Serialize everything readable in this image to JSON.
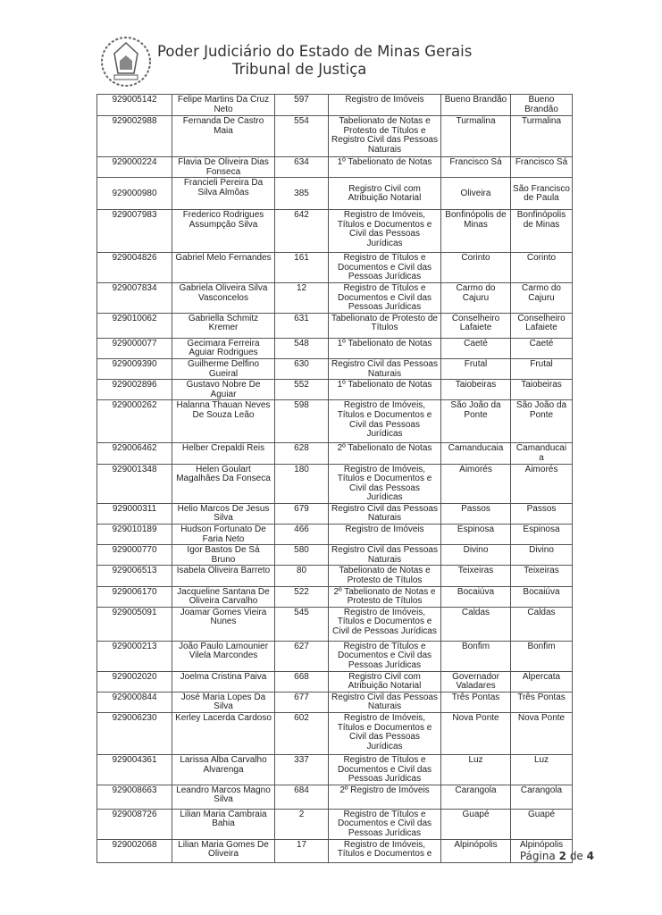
{
  "header": {
    "title": "Poder Judiciário do Estado de Minas Gerais",
    "subtitle": "Tribunal de Justiça",
    "seal_icon": "coat-of-arms-seal"
  },
  "table": {
    "rows": [
      [
        "929005142",
        "Felipe Martins Da Cruz Neto",
        "597",
        "Registro de Imóveis",
        "Bueno Brandão",
        "Bueno Brandão"
      ],
      [
        "929002988",
        "Fernanda De Castro Maia",
        "554",
        "Tabelionato de Notas e Protesto de Títulos e Registro Civil das Pessoas Naturais",
        "Turmalina",
        "Turmalina"
      ],
      [
        "929000224",
        "Flavia De Oliveira Dias Fonseca",
        "634",
        "1º Tabelionato de Notas",
        "Francisco Sá",
        "Francisco Sá"
      ],
      [
        "929000980",
        "Francieli Pereira Da Silva Almôas",
        "385",
        "Registro Civil com Atribuição Notarial",
        "Oliveira",
        "São Francisco de Paula"
      ],
      [
        "929007983",
        "Frederico Rodrigues Assumpção Silva",
        "642",
        "Registro de Imóveis, Títulos e Documentos e Civil das Pessoas Jurídicas",
        "Bonfinópolis de Minas",
        "Bonfinópolis de Minas"
      ],
      [
        "929004826",
        "Gabriel Melo Fernandes",
        "161",
        "Registro de Títulos e Documentos e Civil das Pessoas Jurídicas",
        "Corinto",
        "Corinto"
      ],
      [
        "929007834",
        "Gabriela Oliveira Silva Vasconcelos",
        "12",
        "Registro de Títulos e Documentos e Civil das Pessoas Jurídicas",
        "Carmo do Cajuru",
        "Carmo do Cajuru"
      ],
      [
        "929010062",
        "Gabriella Schmitz Kremer",
        "631",
        "Tabelionato de Protesto de Títulos",
        "Conselheiro Lafaiete",
        "Conselheiro Lafaiete"
      ],
      [
        "929000077",
        "Gecimara Ferreira Aguiar Rodrigues",
        "548",
        "1º Tabelionato de Notas",
        "Caeté",
        "Caeté"
      ],
      [
        "929009390",
        "Guilherme Delfino Gueiral",
        "630",
        "Registro Civil das Pessoas Naturais",
        "Frutal",
        "Frutal"
      ],
      [
        "929002896",
        "Gustavo Nobre De Aguiar",
        "552",
        "1º Tabelionato de Notas",
        "Taiobeiras",
        "Taiobeiras"
      ],
      [
        "929000262",
        "Halanna Thauan Neves De Souza Leão",
        "598",
        "Registro de Imóveis, Títulos e Documentos e Civil das Pessoas Jurídicas",
        "São João da Ponte",
        "São João da Ponte"
      ],
      [
        "929006462",
        "Helber Crepaldi Reis",
        "628",
        "2º Tabelionato de Notas",
        "Camanducaia",
        "Camanducai a"
      ],
      [
        "929001348",
        "Helen Goulart Magalhães Da Fonseca",
        "180",
        "Registro de Imóveis, Títulos e Documentos e Civil das Pessoas Jurídicas",
        "Aimorés",
        "Aimorés"
      ],
      [
        "929000311",
        "Helio Marcos De Jesus Silva",
        "679",
        "Registro Civil das Pessoas Naturais",
        "Passos",
        "Passos"
      ],
      [
        "929010189",
        "Hudson Fortunato De Faria Neto",
        "466",
        "Registro de Imóveis",
        "Espinosa",
        "Espinosa"
      ],
      [
        "929000770",
        "Igor Bastos De Sá Bruno",
        "580",
        "Registro Civil das Pessoas Naturais",
        "Divino",
        "Divino"
      ],
      [
        "929006513",
        "Isabela Oliveira Barreto",
        "80",
        "Tabelionato de Notas e Protesto de Títulos",
        "Teixeiras",
        "Teixeiras"
      ],
      [
        "929006170",
        "Jacqueline Santana De Oliveira Carvalho",
        "522",
        "2º Tabelionato de Notas e Protesto de Títulos",
        "Bocaiúva",
        "Bocaiúva"
      ],
      [
        "929005091",
        "Joamar Gomes Vieira Nunes",
        "545",
        "Registro de Imóveis, Títulos e Documentos e Civil de Pessoas Jurídicas",
        "Caldas",
        "Caldas"
      ],
      [
        "929000213",
        "João Paulo Lamounier Vilela Marcondes",
        "627",
        "Registro de Títulos e Documentos e Civil das Pessoas Jurídicas",
        "Bonfim",
        "Bonfim"
      ],
      [
        "929002020",
        "Joelma Cristina Paiva",
        "668",
        "Registro Civil com Atribuição Notarial",
        "Governador Valadares",
        "Alpercata"
      ],
      [
        "929000844",
        "José Maria Lopes Da Silva",
        "677",
        "Registro Civil das Pessoas Naturais",
        "Três Pontas",
        "Três Pontas"
      ],
      [
        "929006230",
        "Kerley Lacerda Cardoso",
        "602",
        "Registro de Imóveis, Títulos e Documentos e Civil das Pessoas Jurídicas",
        "Nova Ponte",
        "Nova Ponte"
      ],
      [
        "929004361",
        "Larissa Alba Carvalho Alvarenga",
        "337",
        "Registro de Títulos e Documentos e Civil das Pessoas Jurídicas",
        "Luz",
        "Luz"
      ],
      [
        "929008663",
        "Leandro Marcos Magno Silva",
        "684",
        "2º Registro de Imóveis",
        "Carangola",
        "Carangola"
      ],
      [
        "929008726",
        "Lilian Maria Cambraia Bahia",
        "2",
        "Registro de Títulos e Documentos e Civil das Pessoas Jurídicas",
        "Guapé",
        "Guapé"
      ],
      [
        "929002068",
        "Lilian Maria Gomes De Oliveira",
        "17",
        "Registro de Imóveis, Títulos e Documentos e",
        "Alpinópolis",
        "Alpinópolis"
      ]
    ]
  },
  "footer": {
    "prefix": "Página",
    "page": "2",
    "of": "de",
    "total": "4"
  }
}
